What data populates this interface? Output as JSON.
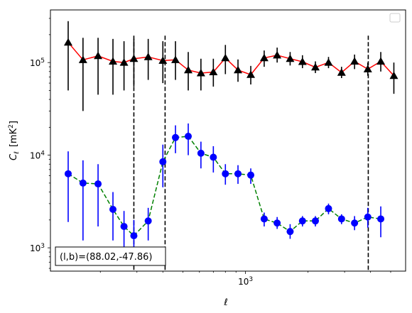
{
  "chart_data": {
    "type": "scatter",
    "xscale": "log",
    "yscale": "log",
    "xlim": [
      115,
      5900
    ],
    "ylim": [
      560,
      370000
    ],
    "xlabel": "ℓ",
    "ylabel_main": "C",
    "ylabel_sub": "ℓ",
    "ylabel_unit": "[mK",
    "ylabel_unit_sup": "2",
    "ylabel_unit_end": "]",
    "x_ticks": [
      {
        "value": 1000,
        "base": "10",
        "exp": "3"
      }
    ],
    "y_ticks": [
      {
        "value": 1000,
        "base": "10",
        "exp": "3"
      },
      {
        "value": 10000,
        "base": "10",
        "exp": "4"
      },
      {
        "value": 100000,
        "base": "10",
        "exp": "5"
      }
    ],
    "legend": {
      "placement": "upper right",
      "entries": []
    },
    "annotation": "(l,b)=(88.02,-47.86)",
    "vlines": [
      290,
      410,
      3900
    ],
    "series": [
      {
        "marker": "triangle",
        "marker_color": "#000000",
        "line_color": "#ff0000",
        "line_style": "solid",
        "errbar_color": "#000000",
        "points": [
          {
            "x": 140,
            "y": 165000,
            "lo": 50000,
            "hi": 280000
          },
          {
            "x": 165,
            "y": 107000,
            "lo": 30000,
            "hi": 185000
          },
          {
            "x": 195,
            "y": 118000,
            "lo": 45000,
            "hi": 185000
          },
          {
            "x": 230,
            "y": 103000,
            "lo": 45000,
            "hi": 180000
          },
          {
            "x": 260,
            "y": 100000,
            "lo": 50000,
            "hi": 170000
          },
          {
            "x": 290,
            "y": 110000,
            "lo": 55000,
            "hi": 180000
          },
          {
            "x": 340,
            "y": 115000,
            "lo": 65000,
            "hi": 180000
          },
          {
            "x": 400,
            "y": 105000,
            "lo": 60000,
            "hi": 170000
          },
          {
            "x": 460,
            "y": 107000,
            "lo": 65000,
            "hi": 170000
          },
          {
            "x": 530,
            "y": 83000,
            "lo": 50000,
            "hi": 130000
          },
          {
            "x": 610,
            "y": 77000,
            "lo": 50000,
            "hi": 110000
          },
          {
            "x": 700,
            "y": 79000,
            "lo": 55000,
            "hi": 110000
          },
          {
            "x": 800,
            "y": 112000,
            "lo": 75000,
            "hi": 155000
          },
          {
            "x": 920,
            "y": 83000,
            "lo": 62000,
            "hi": 108000
          },
          {
            "x": 1060,
            "y": 74000,
            "lo": 58000,
            "hi": 92000
          },
          {
            "x": 1230,
            "y": 112000,
            "lo": 90000,
            "hi": 135000
          },
          {
            "x": 1420,
            "y": 120000,
            "lo": 100000,
            "hi": 145000
          },
          {
            "x": 1640,
            "y": 110000,
            "lo": 93000,
            "hi": 130000
          },
          {
            "x": 1880,
            "y": 102000,
            "lo": 87000,
            "hi": 120000
          },
          {
            "x": 2170,
            "y": 89000,
            "lo": 77000,
            "hi": 103000
          },
          {
            "x": 2510,
            "y": 100000,
            "lo": 87000,
            "hi": 115000
          },
          {
            "x": 2900,
            "y": 78000,
            "lo": 68000,
            "hi": 90000
          },
          {
            "x": 3350,
            "y": 103000,
            "lo": 85000,
            "hi": 122000
          },
          {
            "x": 3880,
            "y": 85000,
            "lo": 72000,
            "hi": 100000
          },
          {
            "x": 4480,
            "y": 103000,
            "lo": 80000,
            "hi": 130000
          },
          {
            "x": 5180,
            "y": 72000,
            "lo": 46000,
            "hi": 100000
          }
        ]
      },
      {
        "marker": "circle",
        "marker_color": "#0000ff",
        "line_color": "#008000",
        "line_style": "dashed",
        "errbar_color": "#0000ff",
        "points": [
          {
            "x": 140,
            "y": 6300,
            "lo": 1900,
            "hi": 11000
          },
          {
            "x": 165,
            "y": 5000,
            "lo": 1200,
            "hi": 8800
          },
          {
            "x": 195,
            "y": 4900,
            "lo": 1700,
            "hi": 8000
          },
          {
            "x": 230,
            "y": 2600,
            "lo": 1200,
            "hi": 4000
          },
          {
            "x": 260,
            "y": 1700,
            "lo": 950,
            "hi": 2500
          },
          {
            "x": 290,
            "y": 1350,
            "lo": 700,
            "hi": 2000
          },
          {
            "x": 340,
            "y": 1950,
            "lo": 1200,
            "hi": 2700
          },
          {
            "x": 400,
            "y": 8500,
            "lo": 4500,
            "hi": 13000
          },
          {
            "x": 460,
            "y": 15500,
            "lo": 10500,
            "hi": 21000
          },
          {
            "x": 530,
            "y": 16000,
            "lo": 10000,
            "hi": 22000
          },
          {
            "x": 610,
            "y": 10500,
            "lo": 7200,
            "hi": 14000
          },
          {
            "x": 700,
            "y": 9500,
            "lo": 6500,
            "hi": 12500
          },
          {
            "x": 800,
            "y": 6300,
            "lo": 4800,
            "hi": 8000
          },
          {
            "x": 920,
            "y": 6300,
            "lo": 4900,
            "hi": 7800
          },
          {
            "x": 1060,
            "y": 6100,
            "lo": 4900,
            "hi": 7200
          },
          {
            "x": 1230,
            "y": 2050,
            "lo": 1700,
            "hi": 2400
          },
          {
            "x": 1420,
            "y": 1850,
            "lo": 1600,
            "hi": 2150
          },
          {
            "x": 1640,
            "y": 1500,
            "lo": 1250,
            "hi": 1800
          },
          {
            "x": 1880,
            "y": 1950,
            "lo": 1700,
            "hi": 2200
          },
          {
            "x": 2170,
            "y": 1950,
            "lo": 1700,
            "hi": 2200
          },
          {
            "x": 2510,
            "y": 2650,
            "lo": 2300,
            "hi": 3000
          },
          {
            "x": 2900,
            "y": 2050,
            "lo": 1800,
            "hi": 2300
          },
          {
            "x": 3350,
            "y": 1850,
            "lo": 1550,
            "hi": 2200
          },
          {
            "x": 3880,
            "y": 2150,
            "lo": 1650,
            "hi": 2700
          },
          {
            "x": 4480,
            "y": 2050,
            "lo": 1300,
            "hi": 2800
          }
        ]
      }
    ]
  }
}
